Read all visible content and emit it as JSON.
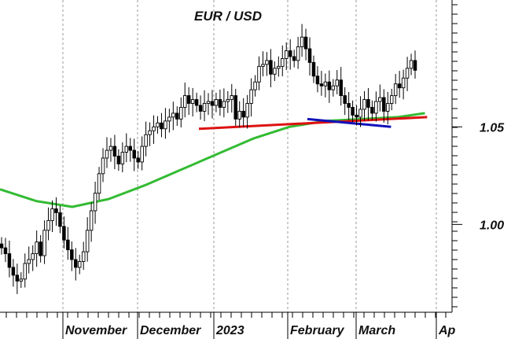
{
  "chart_data": {
    "type": "candlestick",
    "title": "EUR / USD",
    "xlabel": "",
    "ylabel": "",
    "x_tick_labels": [
      "November",
      "December",
      "2023",
      "February",
      "March",
      "Ap"
    ],
    "y_tick_labels": [
      "1.00",
      "1.05"
    ],
    "y_ticks": [
      1.0,
      1.05
    ],
    "ylim": [
      0.955,
      1.115
    ],
    "grid": "vertical dashed at month boundaries",
    "colors": {
      "moving_average": "#33bb33",
      "support_line": "#dd1111",
      "trend_line": "#1111bb",
      "up_candle": "#ffffff",
      "down_candle": "#000000"
    },
    "series": [
      {
        "kind": "close",
        "values": [
          0.988,
          0.985,
          0.978,
          0.974,
          0.971,
          0.972,
          0.98,
          0.982,
          0.985,
          0.991,
          0.984,
          0.997,
          1.002,
          1.008,
          1.006,
          0.999,
          0.992,
          0.987,
          0.982,
          0.978,
          0.981,
          0.986,
          0.997,
          1.007,
          1.016,
          1.026,
          1.034,
          1.038,
          1.04,
          1.035,
          1.031,
          1.037,
          1.04,
          1.038,
          1.034,
          1.032,
          1.04,
          1.046,
          1.048,
          1.05,
          1.052,
          1.049,
          1.053,
          1.055,
          1.057,
          1.054,
          1.06,
          1.066,
          1.062,
          1.064,
          1.061,
          1.058,
          1.062,
          1.063,
          1.061,
          1.064,
          1.06,
          1.063,
          1.064,
          1.066,
          1.054,
          1.058,
          1.055,
          1.062,
          1.069,
          1.073,
          1.081,
          1.082,
          1.084,
          1.077,
          1.08,
          1.081,
          1.085,
          1.089,
          1.086,
          1.084,
          1.091,
          1.096,
          1.09,
          1.083,
          1.076,
          1.072,
          1.071,
          1.073,
          1.069,
          1.071,
          1.074,
          1.066,
          1.062,
          1.06,
          1.056,
          1.055,
          1.059,
          1.064,
          1.06,
          1.057,
          1.063,
          1.065,
          1.058,
          1.062,
          1.066,
          1.072,
          1.07,
          1.075,
          1.08,
          1.084,
          1.079
        ]
      },
      {
        "name": "",
        "kind": "moving-average",
        "x": [
          0,
          0.08,
          0.16,
          0.24,
          0.32,
          0.4,
          0.48,
          0.56,
          0.64,
          0.72,
          0.8,
          0.88,
          0.94
        ],
        "values": [
          1.018,
          1.012,
          1.009,
          1.013,
          1.02,
          1.028,
          1.036,
          1.044,
          1.05,
          1.053,
          1.054,
          1.055,
          1.057
        ]
      },
      {
        "name": "",
        "kind": "support-line",
        "x": [
          0.44,
          0.945
        ],
        "values": [
          1.049,
          1.055
        ]
      },
      {
        "name": "",
        "kind": "trend-line",
        "x": [
          0.68,
          0.865
        ],
        "values": [
          1.054,
          1.05
        ]
      }
    ]
  }
}
